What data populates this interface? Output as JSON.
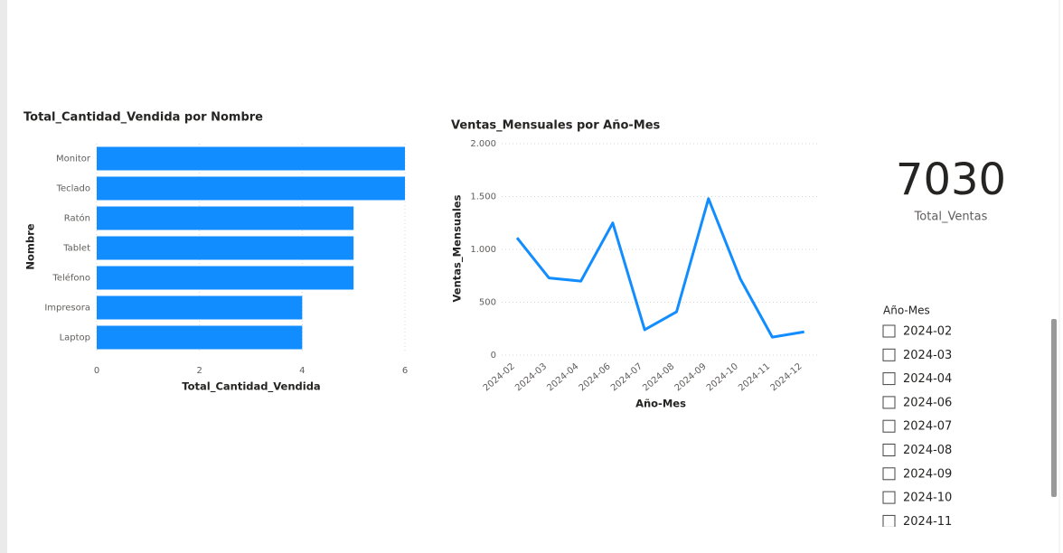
{
  "chart_data": [
    {
      "type": "hbar",
      "title": "Total_Cantidad_Vendida por Nombre",
      "x_label": "Total_Cantidad_Vendida",
      "y_label": "Nombre",
      "categories": [
        "Monitor",
        "Teclado",
        "Ratón",
        "Tablet",
        "Teléfono",
        "Impresora",
        "Laptop"
      ],
      "values": [
        6,
        6,
        5,
        5,
        5,
        4,
        4
      ],
      "color": "#118dff",
      "xlim": [
        0,
        6
      ],
      "xticks": [
        0,
        2,
        4,
        6
      ],
      "grid": true
    },
    {
      "type": "line",
      "title": "Ventas_Mensuales por Año-Mes",
      "x_label": "Año-Mes",
      "y_label": "Ventas_Mensuales",
      "categories": [
        "2024-02",
        "2024-03",
        "2024-04",
        "2024-06",
        "2024-07",
        "2024-08",
        "2024-09",
        "2024-10",
        "2024-11",
        "2024-12"
      ],
      "values": [
        1110,
        730,
        700,
        1250,
        240,
        410,
        1480,
        720,
        170,
        220
      ],
      "color": "#118dff",
      "ylim": [
        0,
        2000
      ],
      "yticks": [
        0,
        500,
        {
          "value": 1000,
          "label": "1.000"
        },
        {
          "value": 1500,
          "label": "1.500"
        },
        {
          "value": 2000,
          "label": "2.000"
        }
      ],
      "grid": true
    }
  ],
  "card": {
    "value": 7030,
    "label": "Total_Ventas"
  },
  "slicer": {
    "title": "Año-Mes",
    "items": [
      "2024-02",
      "2024-03",
      "2024-04",
      "2024-06",
      "2024-07",
      "2024-08",
      "2024-09",
      "2024-10",
      "2024-11"
    ]
  }
}
